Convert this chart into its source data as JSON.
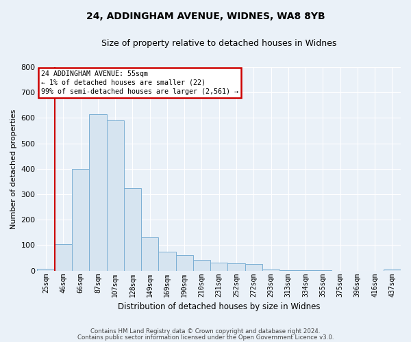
{
  "title1": "24, ADDINGHAM AVENUE, WIDNES, WA8 8YB",
  "title2": "Size of property relative to detached houses in Widnes",
  "xlabel": "Distribution of detached houses by size in Widnes",
  "ylabel": "Number of detached properties",
  "categories": [
    "25sqm",
    "46sqm",
    "66sqm",
    "87sqm",
    "107sqm",
    "128sqm",
    "149sqm",
    "169sqm",
    "190sqm",
    "210sqm",
    "231sqm",
    "252sqm",
    "272sqm",
    "293sqm",
    "313sqm",
    "334sqm",
    "355sqm",
    "375sqm",
    "396sqm",
    "416sqm",
    "437sqm"
  ],
  "values": [
    7,
    105,
    400,
    615,
    590,
    325,
    130,
    75,
    60,
    42,
    30,
    28,
    27,
    5,
    1,
    1,
    1,
    0,
    0,
    0,
    5
  ],
  "bar_color": "#d6e4f0",
  "bar_edge_color": "#7bafd4",
  "background_color": "#eaf1f8",
  "grid_color": "#ffffff",
  "annotation_text1": "24 ADDINGHAM AVENUE: 55sqm",
  "annotation_text2": "← 1% of detached houses are smaller (22)",
  "annotation_text3": "99% of semi-detached houses are larger (2,561) →",
  "annotation_box_color": "#ffffff",
  "annotation_border_color": "#cc0000",
  "red_line_index": 0.5,
  "footer1": "Contains HM Land Registry data © Crown copyright and database right 2024.",
  "footer2": "Contains public sector information licensed under the Open Government Licence v3.0.",
  "ylim": [
    0,
    800
  ],
  "yticks": [
    0,
    100,
    200,
    300,
    400,
    500,
    600,
    700,
    800
  ]
}
